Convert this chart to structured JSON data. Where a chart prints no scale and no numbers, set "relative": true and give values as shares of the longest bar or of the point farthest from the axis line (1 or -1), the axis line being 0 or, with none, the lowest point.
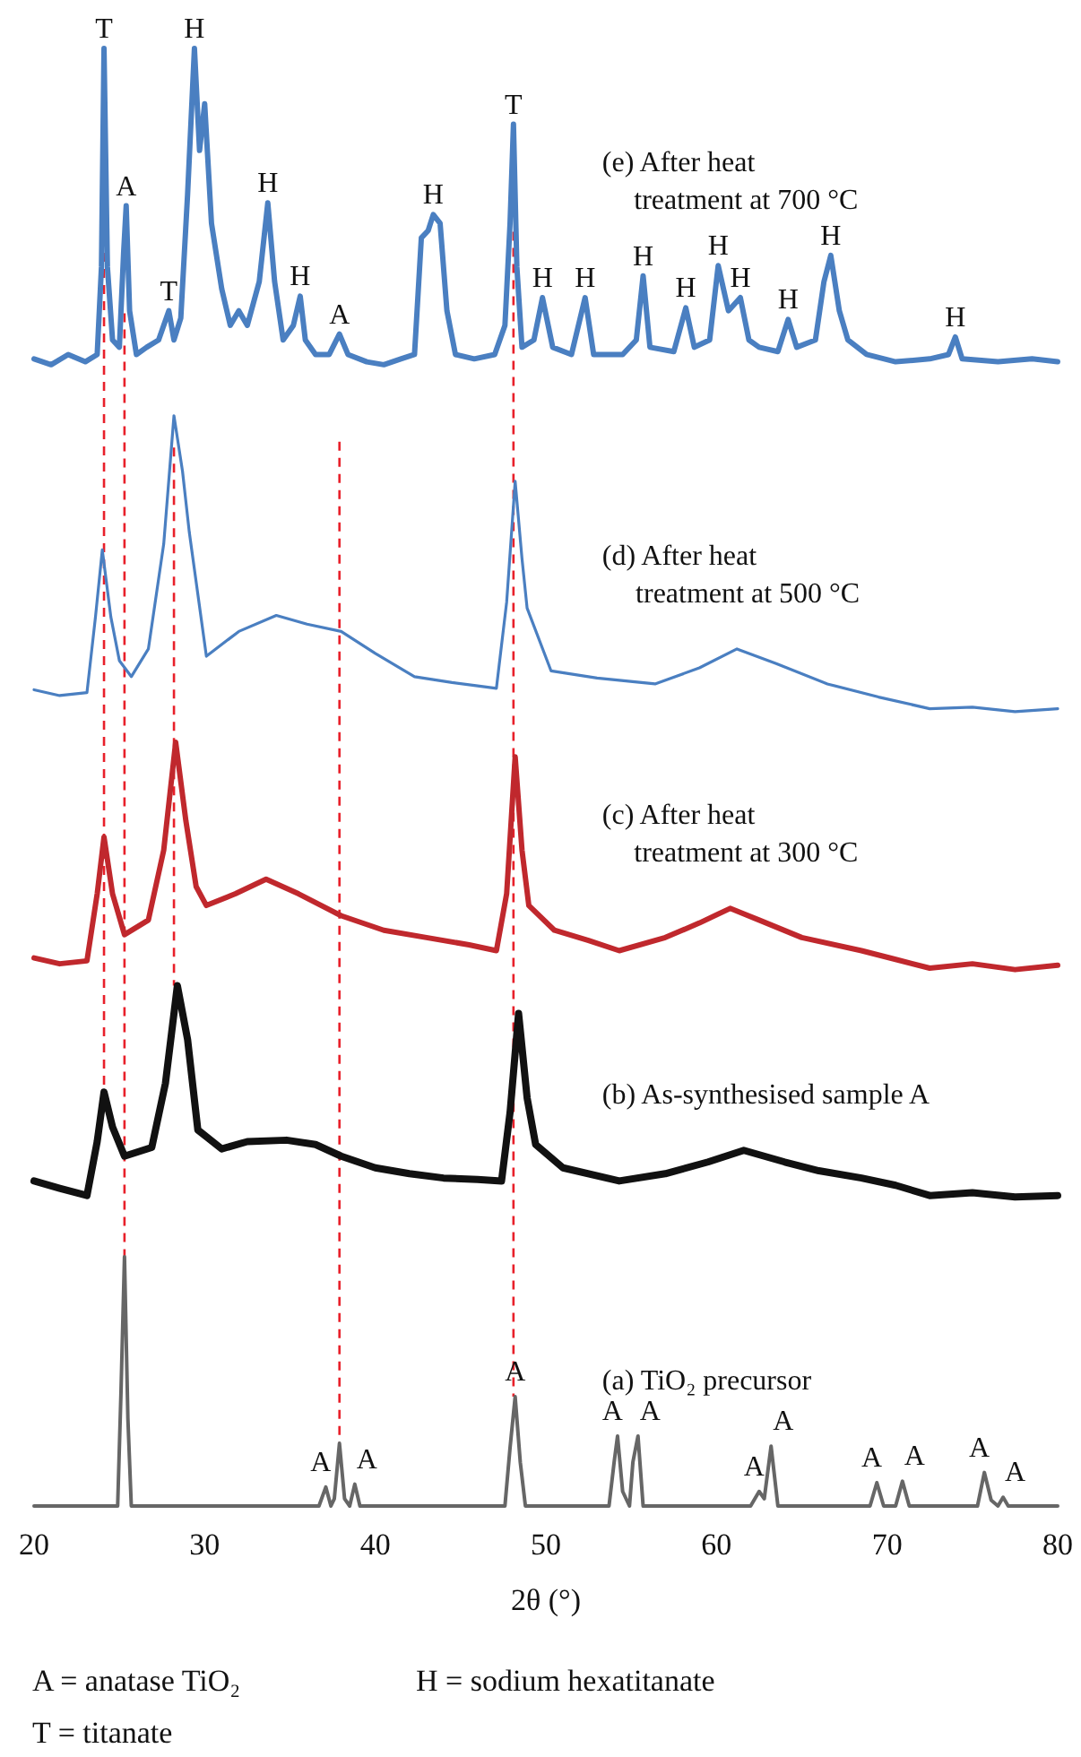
{
  "chart_data": {
    "type": "line",
    "relative": true,
    "xlabel": "2θ (°)",
    "xlim": [
      20,
      80
    ],
    "xticks": [
      20,
      30,
      40,
      50,
      60,
      70,
      80
    ],
    "grid": false,
    "legend": false,
    "marker": "none",
    "line_style": "solid",
    "series": [
      {
        "name": "(a) TiO₂ precursor",
        "color": "#666666",
        "x": [
          20,
          24.9,
          25.1,
          25.3,
          25.5,
          25.7,
          36.7,
          37.1,
          37.4,
          37.6,
          37.9,
          38.2,
          38.5,
          38.8,
          39.1,
          47.6,
          47.9,
          48.2,
          48.5,
          48.8,
          53.7,
          54.0,
          54.2,
          54.5,
          54.9,
          55.1,
          55.4,
          55.7,
          62.0,
          62.5,
          62.8,
          63.2,
          63.6,
          69.0,
          69.4,
          69.8,
          70.5,
          70.9,
          71.3,
          75.3,
          75.7,
          76.1,
          76.5,
          76.8,
          77.1,
          80
        ],
        "values": [
          0,
          0,
          0.08,
          0.171,
          0.06,
          0,
          0,
          0.013,
          0,
          0.005,
          0.043,
          0.005,
          0,
          0.015,
          0,
          0,
          0.04,
          0.075,
          0.03,
          0,
          0,
          0.03,
          0.048,
          0.01,
          0,
          0.03,
          0.048,
          0,
          0,
          0.01,
          0.005,
          0.041,
          0,
          0,
          0.016,
          0,
          0,
          0.017,
          0,
          0,
          0.023,
          0.004,
          0,
          0.006,
          0,
          0
        ]
      },
      {
        "name": "(b) As-synthesised sample A",
        "color": "#111111",
        "x": [
          20,
          21.5,
          23.1,
          23.7,
          24.1,
          24.6,
          25.3,
          26.9,
          27.7,
          28.4,
          29.0,
          29.6,
          31,
          32.5,
          34.8,
          36.5,
          38.0,
          40,
          42,
          44,
          46,
          47.4,
          47.9,
          48.4,
          48.9,
          49.4,
          51,
          54.3,
          57,
          59.5,
          61.6,
          64,
          66,
          68.5,
          70.5,
          72.5,
          75,
          77.5,
          80
        ],
        "values": [
          0.223,
          0.218,
          0.213,
          0.25,
          0.284,
          0.26,
          0.24,
          0.246,
          0.29,
          0.357,
          0.32,
          0.258,
          0.245,
          0.25,
          0.251,
          0.248,
          0.24,
          0.232,
          0.228,
          0.225,
          0.224,
          0.223,
          0.27,
          0.338,
          0.28,
          0.248,
          0.232,
          0.223,
          0.228,
          0.236,
          0.244,
          0.236,
          0.23,
          0.225,
          0.22,
          0.213,
          0.215,
          0.212,
          0.213
        ]
      },
      {
        "name": "(c) After heat treatment at 300 °C",
        "color": "#c0282d",
        "x": [
          20,
          21.5,
          23.1,
          23.7,
          24.1,
          24.6,
          25.3,
          26.7,
          27.6,
          28.3,
          28.9,
          29.5,
          30.1,
          31.8,
          33.6,
          35.5,
          38.0,
          40.5,
          43,
          45.5,
          47.1,
          47.7,
          48.2,
          48.6,
          49.0,
          50.5,
          52.5,
          54.3,
          57,
          59,
          60.8,
          62.5,
          65,
          68.5,
          70.5,
          72.5,
          75,
          77.5,
          80
        ],
        "values": [
          0.376,
          0.372,
          0.374,
          0.42,
          0.459,
          0.42,
          0.392,
          0.402,
          0.45,
          0.524,
          0.47,
          0.425,
          0.412,
          0.42,
          0.43,
          0.42,
          0.405,
          0.395,
          0.39,
          0.385,
          0.381,
          0.42,
          0.514,
          0.45,
          0.412,
          0.395,
          0.388,
          0.381,
          0.39,
          0.4,
          0.41,
          0.402,
          0.39,
          0.381,
          0.375,
          0.369,
          0.372,
          0.368,
          0.371
        ]
      },
      {
        "name": "(d) After heat treatment at 500 °C",
        "color": "#4a7fc1",
        "x": [
          20,
          21.5,
          23.1,
          23.6,
          24.0,
          24.5,
          25.0,
          25.7,
          26.7,
          27.6,
          28.2,
          28.7,
          29.1,
          30.1,
          32,
          34.2,
          36,
          38.0,
          40,
          42.3,
          44.5,
          47.1,
          47.7,
          48.2,
          48.6,
          48.9,
          50.3,
          53,
          56.4,
          59,
          61.2,
          63.5,
          66.5,
          69.5,
          72.5,
          75,
          77.5,
          80
        ],
        "values": [
          0.56,
          0.556,
          0.558,
          0.61,
          0.656,
          0.61,
          0.58,
          0.569,
          0.588,
          0.66,
          0.748,
          0.71,
          0.668,
          0.583,
          0.6,
          0.611,
          0.605,
          0.6,
          0.585,
          0.569,
          0.565,
          0.561,
          0.62,
          0.703,
          0.65,
          0.616,
          0.573,
          0.568,
          0.564,
          0.575,
          0.588,
          0.578,
          0.564,
          0.555,
          0.547,
          0.548,
          0.545,
          0.547
        ]
      },
      {
        "name": "(e) After heat treatment at 700 °C",
        "color": "#4a7fc1",
        "x": [
          20,
          21,
          22,
          23,
          23.7,
          23.95,
          24.1,
          24.3,
          24.6,
          25.0,
          25.25,
          25.4,
          25.6,
          26.0,
          26.6,
          27.3,
          27.9,
          28.2,
          28.6,
          29.0,
          29.4,
          29.7,
          30.0,
          30.4,
          31.0,
          31.5,
          32.0,
          32.5,
          33.2,
          33.7,
          34.1,
          34.6,
          35.2,
          35.6,
          35.9,
          36.5,
          37.3,
          37.9,
          38.4,
          39.5,
          40.5,
          41.5,
          42.3,
          42.7,
          43.1,
          43.4,
          43.8,
          44.2,
          44.7,
          45.8,
          47.0,
          47.6,
          47.9,
          48.1,
          48.3,
          48.6,
          49.3,
          49.8,
          50.4,
          51.5,
          52.3,
          52.8,
          54.5,
          55.3,
          55.7,
          56.1,
          57.5,
          58.2,
          58.7,
          59.6,
          60.1,
          60.7,
          61.4,
          61.9,
          62.5,
          63.6,
          64.2,
          64.7,
          65.8,
          66.3,
          66.7,
          67.2,
          67.7,
          68.8,
          70.5,
          72.5,
          73.6,
          74.0,
          74.4,
          76.5,
          78.5,
          80
        ],
        "values": [
          0.787,
          0.783,
          0.79,
          0.785,
          0.79,
          0.85,
          1.0,
          0.85,
          0.8,
          0.795,
          0.86,
          0.892,
          0.82,
          0.79,
          0.795,
          0.8,
          0.82,
          0.8,
          0.815,
          0.9,
          1.0,
          0.93,
          0.962,
          0.88,
          0.835,
          0.81,
          0.82,
          0.81,
          0.84,
          0.894,
          0.84,
          0.8,
          0.81,
          0.83,
          0.8,
          0.79,
          0.79,
          0.804,
          0.79,
          0.785,
          0.783,
          0.787,
          0.79,
          0.87,
          0.875,
          0.886,
          0.88,
          0.82,
          0.79,
          0.787,
          0.79,
          0.81,
          0.88,
          0.948,
          0.85,
          0.795,
          0.8,
          0.829,
          0.795,
          0.79,
          0.829,
          0.79,
          0.79,
          0.8,
          0.844,
          0.795,
          0.792,
          0.822,
          0.795,
          0.8,
          0.851,
          0.82,
          0.829,
          0.8,
          0.795,
          0.792,
          0.814,
          0.795,
          0.8,
          0.84,
          0.858,
          0.82,
          0.8,
          0.79,
          0.785,
          0.787,
          0.79,
          0.802,
          0.787,
          0.785,
          0.787,
          0.785
        ]
      }
    ],
    "ref_lines": [
      {
        "axis": "x",
        "value": 24.1,
        "color": "#e8202a",
        "line_style": "dashed"
      },
      {
        "axis": "x",
        "value": 25.3,
        "color": "#e8202a",
        "line_style": "dashed"
      },
      {
        "axis": "x",
        "value": 28.2,
        "color": "#e8202a",
        "line_style": "dashed"
      },
      {
        "axis": "x",
        "value": 37.9,
        "color": "#e8202a",
        "line_style": "dashed"
      },
      {
        "axis": "x",
        "value": 48.1,
        "color": "#e8202a",
        "line_style": "dashed"
      }
    ],
    "annotations": [
      {
        "text": "T",
        "x": 24.1,
        "y": 1.0
      },
      {
        "text": "A",
        "x": 25.4,
        "y": 0.892
      },
      {
        "text": "T",
        "x": 27.9,
        "y": 0.82
      },
      {
        "text": "H",
        "x": 29.4,
        "y": 1.0
      },
      {
        "text": "H",
        "x": 33.7,
        "y": 0.894
      },
      {
        "text": "H",
        "x": 35.6,
        "y": 0.83
      },
      {
        "text": "A",
        "x": 37.9,
        "y": 0.804
      },
      {
        "text": "H",
        "x": 43.4,
        "y": 0.886
      },
      {
        "text": "T",
        "x": 48.1,
        "y": 0.948
      },
      {
        "text": "H",
        "x": 49.8,
        "y": 0.829
      },
      {
        "text": "H",
        "x": 52.3,
        "y": 0.829
      },
      {
        "text": "H",
        "x": 55.7,
        "y": 0.844
      },
      {
        "text": "H",
        "x": 58.2,
        "y": 0.822
      },
      {
        "text": "H",
        "x": 60.1,
        "y": 0.851
      },
      {
        "text": "H",
        "x": 61.4,
        "y": 0.829
      },
      {
        "text": "H",
        "x": 64.2,
        "y": 0.814
      },
      {
        "text": "H",
        "x": 66.7,
        "y": 0.858
      },
      {
        "text": "H",
        "x": 74.0,
        "y": 0.802
      },
      {
        "text": "A",
        "x": 37.1,
        "y": 0.013
      },
      {
        "text": "A",
        "x": 38.8,
        "y": 0.015
      },
      {
        "text": "A",
        "x": 48.2,
        "y": 0.075
      },
      {
        "text": "A",
        "x": 54.2,
        "y": 0.048
      },
      {
        "text": "A",
        "x": 55.4,
        "y": 0.048
      },
      {
        "text": "A",
        "x": 62.5,
        "y": 0.01
      },
      {
        "text": "A",
        "x": 63.2,
        "y": 0.041
      },
      {
        "text": "A",
        "x": 69.4,
        "y": 0.016
      },
      {
        "text": "A",
        "x": 70.9,
        "y": 0.017
      },
      {
        "text": "A",
        "x": 75.7,
        "y": 0.023
      },
      {
        "text": "A",
        "x": 76.8,
        "y": 0.006
      },
      "A = anatase TiO₂",
      "H = sodium hexatitanate",
      "T = titanate"
    ]
  }
}
